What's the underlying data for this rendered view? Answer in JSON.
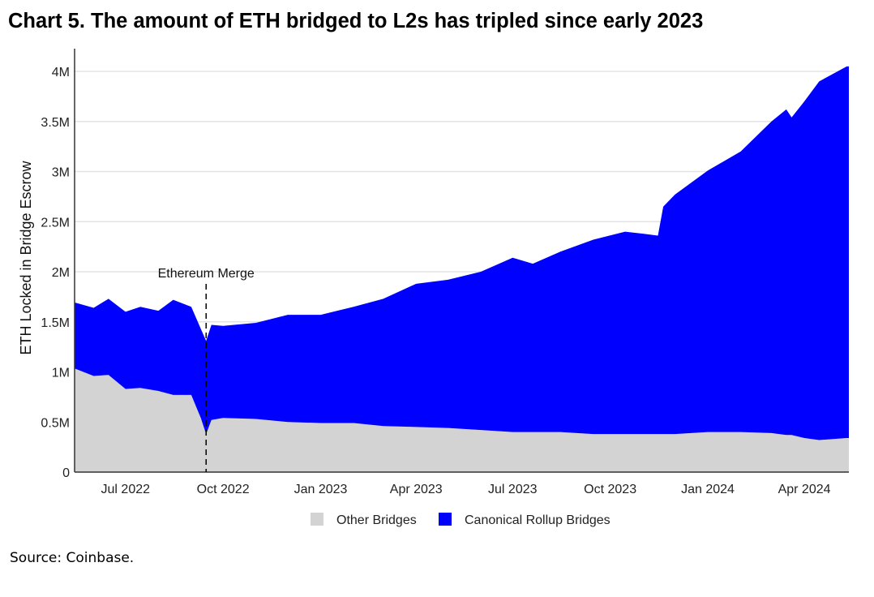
{
  "chart_data": {
    "type": "area",
    "stacked": true,
    "title": "Chart 5. The amount of ETH bridged to L2s has tripled since early 2023",
    "xlabel": "",
    "ylabel": "ETH Locked in Bridge Escrow",
    "xlim": [
      "2022-05-14",
      "2024-05-13"
    ],
    "ylim": [
      0,
      4300000
    ],
    "yticks": [
      0,
      500000,
      1000000,
      1500000,
      2000000,
      2500000,
      3000000,
      3500000,
      4000000
    ],
    "ytick_labels": [
      "0",
      "0.5M",
      "1M",
      "1.5M",
      "2M",
      "2.5M",
      "3M",
      "3.5M",
      "4M"
    ],
    "xticks": [
      "2022-07-01",
      "2022-10-01",
      "2023-01-01",
      "2023-04-01",
      "2023-07-01",
      "2023-10-01",
      "2024-01-01",
      "2024-04-01"
    ],
    "xtick_labels": [
      "Jul 2022",
      "Oct 2022",
      "Jan 2023",
      "Apr 2023",
      "Jul 2023",
      "Oct 2023",
      "Jan 2024",
      "Apr 2024"
    ],
    "grid": "horizontal",
    "legend": "bottom",
    "annotation": {
      "date": "2022-09-15",
      "label": "Ethereum Merge"
    },
    "x": [
      "2022-05-15",
      "2022-06-01",
      "2022-06-15",
      "2022-07-01",
      "2022-07-15",
      "2022-08-01",
      "2022-08-15",
      "2022-09-01",
      "2022-09-10",
      "2022-09-15",
      "2022-09-20",
      "2022-10-01",
      "2022-11-01",
      "2022-12-01",
      "2023-01-01",
      "2023-02-01",
      "2023-03-01",
      "2023-04-01",
      "2023-05-01",
      "2023-06-01",
      "2023-07-01",
      "2023-07-20",
      "2023-08-15",
      "2023-09-15",
      "2023-10-15",
      "2023-11-01",
      "2023-11-15",
      "2023-11-20",
      "2023-12-01",
      "2024-01-01",
      "2024-02-01",
      "2024-03-01",
      "2024-03-15",
      "2024-03-20",
      "2024-04-01",
      "2024-04-15",
      "2024-05-11"
    ],
    "series": [
      {
        "name": "Other Bridges",
        "color": "#d3d3d3",
        "values": [
          1030000,
          960000,
          970000,
          830000,
          840000,
          810000,
          770000,
          770000,
          540000,
          380000,
          520000,
          540000,
          530000,
          500000,
          490000,
          490000,
          460000,
          450000,
          440000,
          420000,
          400000,
          400000,
          400000,
          380000,
          380000,
          380000,
          380000,
          380000,
          380000,
          400000,
          400000,
          390000,
          370000,
          370000,
          340000,
          320000,
          340000
        ]
      },
      {
        "name": "Canonical Rollup Bridges",
        "color": "#0000ff",
        "values": [
          660000,
          680000,
          760000,
          770000,
          810000,
          800000,
          950000,
          880000,
          890000,
          930000,
          950000,
          920000,
          960000,
          1070000,
          1080000,
          1160000,
          1270000,
          1430000,
          1480000,
          1580000,
          1740000,
          1680000,
          1800000,
          1940000,
          2020000,
          2000000,
          1980000,
          2270000,
          2390000,
          2610000,
          2800000,
          3110000,
          3250000,
          3170000,
          3360000,
          3580000,
          3710000
        ]
      }
    ]
  },
  "source": "Source: Coinbase."
}
